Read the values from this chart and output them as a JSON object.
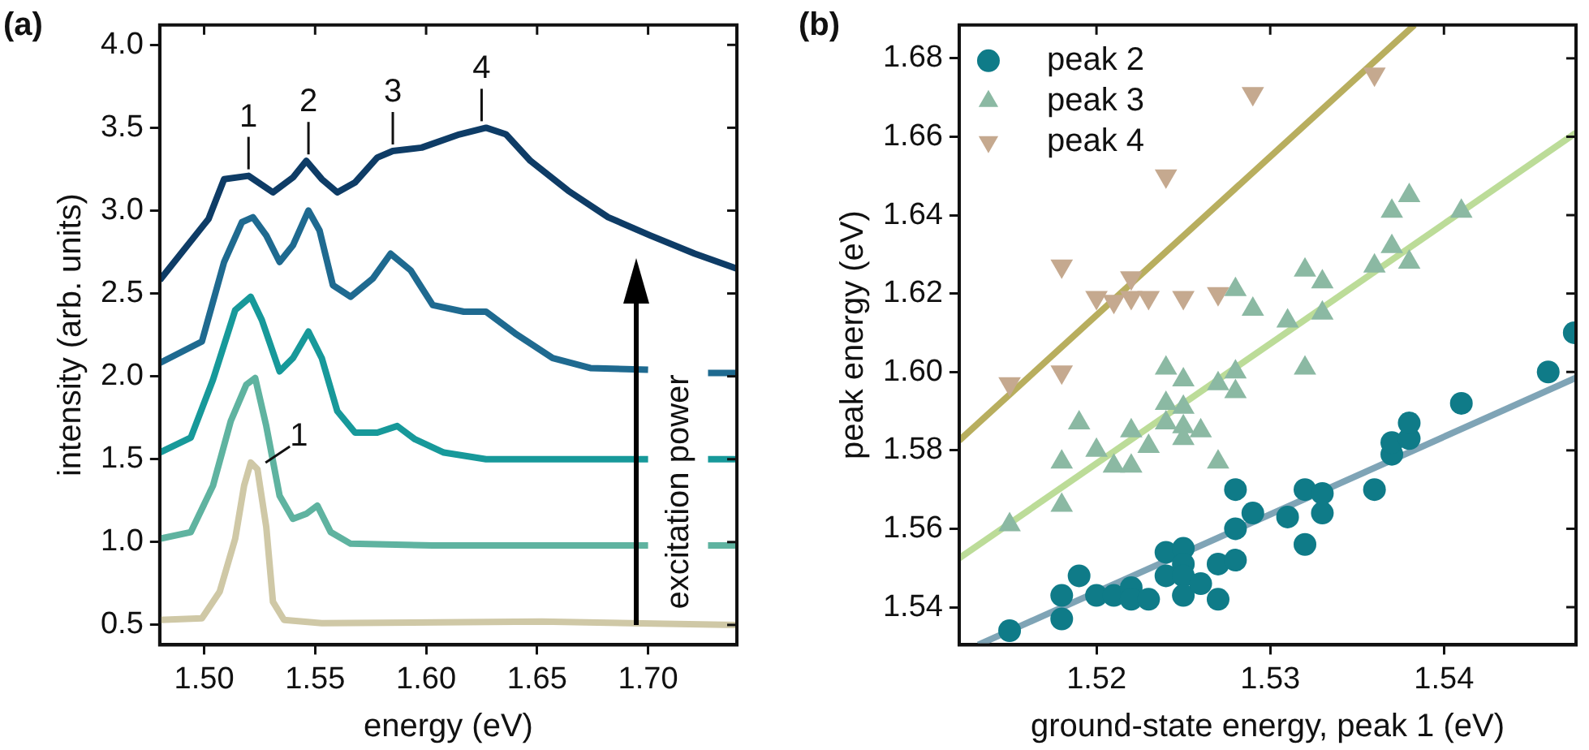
{
  "chart_data": [
    {
      "type": "line",
      "title": "(a)",
      "xlabel": "energy (eV)",
      "ylabel": "intensity (arb. units)",
      "xlim": [
        1.48,
        1.74
      ],
      "ylim": [
        0.38,
        4.12
      ],
      "xticks": [
        {
          "value": 1.5,
          "label": "1.50"
        },
        {
          "value": 1.55,
          "label": "1.55"
        },
        {
          "value": 1.6,
          "label": "1.60"
        },
        {
          "value": 1.65,
          "label": "1.65"
        },
        {
          "value": 1.7,
          "label": "1.70"
        }
      ],
      "yticks": [
        {
          "value": 0.5,
          "label": "0.5"
        },
        {
          "value": 1,
          "label": "1.0"
        },
        {
          "value": 1.5,
          "label": "1.5"
        },
        {
          "value": 2,
          "label": "2.0"
        },
        {
          "value": 2.5,
          "label": "2.5"
        },
        {
          "value": 3,
          "label": "3.0"
        },
        {
          "value": 3.5,
          "label": "3.5"
        },
        {
          "value": 4,
          "label": "4.0"
        }
      ],
      "legend": false,
      "marker": "none",
      "series": [
        {
          "color": "#cfc8a6",
          "x": [
            1.48,
            1.499,
            1.507,
            1.514,
            1.518,
            1.521,
            1.524,
            1.528,
            1.531,
            1.536,
            1.553,
            1.652,
            1.74
          ],
          "values": [
            0.53,
            0.54,
            0.7,
            1.02,
            1.34,
            1.48,
            1.44,
            1.09,
            0.64,
            0.53,
            0.51,
            0.52,
            0.5
          ]
        },
        {
          "color": "#5fb3a0",
          "x": [
            1.48,
            1.494,
            1.504,
            1.512,
            1.519,
            1.523,
            1.528,
            1.534,
            1.54,
            1.546,
            1.551,
            1.557,
            1.566,
            1.603,
            1.7,
            1.712,
            1.727,
            1.74
          ],
          "values": [
            1.02,
            1.06,
            1.34,
            1.73,
            1.95,
            1.99,
            1.7,
            1.28,
            1.14,
            1.17,
            1.22,
            1.06,
            0.99,
            0.98,
            0.98,
            null,
            0.98,
            0.98
          ]
        },
        {
          "color": "#17999a",
          "x": [
            1.48,
            1.494,
            1.504,
            1.514,
            1.521,
            1.526,
            1.534,
            1.54,
            1.547,
            1.553,
            1.56,
            1.568,
            1.578,
            1.587,
            1.595,
            1.608,
            1.627,
            1.652,
            1.7,
            1.712,
            1.727,
            1.74
          ],
          "values": [
            1.54,
            1.63,
            1.98,
            2.4,
            2.48,
            2.34,
            2.03,
            2.11,
            2.27,
            2.11,
            1.79,
            1.66,
            1.66,
            1.7,
            1.62,
            1.54,
            1.5,
            1.5,
            1.5,
            null,
            1.5,
            1.5
          ]
        },
        {
          "color": "#1f6a90",
          "x": [
            1.48,
            1.499,
            1.509,
            1.517,
            1.522,
            1.528,
            1.534,
            1.54,
            1.547,
            1.552,
            1.558,
            1.566,
            1.576,
            1.584,
            1.593,
            1.603,
            1.617,
            1.627,
            1.64,
            1.657,
            1.674,
            1.7,
            1.712,
            1.727,
            1.74
          ],
          "values": [
            2.08,
            2.21,
            2.69,
            2.93,
            2.96,
            2.85,
            2.69,
            2.79,
            3.0,
            2.88,
            2.55,
            2.48,
            2.59,
            2.74,
            2.64,
            2.43,
            2.39,
            2.39,
            2.26,
            2.11,
            2.05,
            2.04,
            null,
            2.02,
            2.02
          ]
        },
        {
          "color": "#0e3c66",
          "x": [
            1.48,
            1.502,
            1.509,
            1.52,
            1.531,
            1.54,
            1.546,
            1.553,
            1.56,
            1.568,
            1.578,
            1.585,
            1.598,
            1.615,
            1.627,
            1.636,
            1.647,
            1.664,
            1.682,
            1.701,
            1.721,
            1.74
          ],
          "values": [
            2.58,
            2.95,
            3.19,
            3.21,
            3.11,
            3.2,
            3.3,
            3.19,
            3.11,
            3.17,
            3.32,
            3.36,
            3.38,
            3.46,
            3.5,
            3.46,
            3.3,
            3.12,
            2.96,
            2.85,
            2.74,
            2.65
          ]
        }
      ],
      "annotations": [
        {
          "text": "1",
          "x": 1.52,
          "y": 3.21
        },
        {
          "text": "2",
          "x": 1.547,
          "y": 3.3
        },
        {
          "text": "3",
          "x": 1.585,
          "y": 3.36
        },
        {
          "text": "4",
          "x": 1.625,
          "y": 3.5
        },
        {
          "text": "1",
          "x": 1.524,
          "y": 1.44
        },
        "excitation power"
      ]
    },
    {
      "type": "scatter",
      "title": "(b)",
      "xlabel": "ground-state energy, peak 1 (eV)",
      "ylabel": "peak energy (eV)",
      "xlim": [
        1.5121,
        1.5476
      ],
      "ylim": [
        1.5304,
        1.6885
      ],
      "xticks": [
        1.52,
        1.53,
        1.54
      ],
      "yticks": [
        1.54,
        1.56,
        1.58,
        {
          "value": 1.6,
          "label": "1.60"
        },
        1.62,
        1.64,
        1.66,
        1.68
      ],
      "legend": "top left",
      "series": [
        {
          "name": "peak 2",
          "color": "#0f7b88",
          "marker": "circle",
          "x": [
            1.515,
            1.518,
            1.518,
            1.519,
            1.52,
            1.521,
            1.522,
            1.522,
            1.523,
            1.524,
            1.524,
            1.525,
            1.525,
            1.525,
            1.525,
            1.526,
            1.527,
            1.527,
            1.528,
            1.528,
            1.528,
            1.529,
            1.531,
            1.532,
            1.532,
            1.533,
            1.533,
            1.536,
            1.537,
            1.537,
            1.538,
            1.538,
            1.541,
            1.546,
            1.5475
          ],
          "values": [
            1.534,
            1.543,
            1.537,
            1.548,
            1.543,
            1.543,
            1.545,
            1.542,
            1.542,
            1.554,
            1.548,
            1.555,
            1.551,
            1.548,
            1.543,
            1.546,
            1.542,
            1.551,
            1.552,
            1.56,
            1.57,
            1.564,
            1.563,
            1.57,
            1.556,
            1.569,
            1.564,
            1.57,
            1.579,
            1.582,
            1.583,
            1.587,
            1.592,
            1.6,
            1.61
          ]
        },
        {
          "name": "peak 3",
          "color": "#8bb9a3",
          "marker": "triangle",
          "x": [
            1.515,
            1.518,
            1.518,
            1.519,
            1.52,
            1.521,
            1.522,
            1.522,
            1.523,
            1.524,
            1.524,
            1.524,
            1.525,
            1.525,
            1.525,
            1.525,
            1.526,
            1.527,
            1.527,
            1.528,
            1.528,
            1.528,
            1.529,
            1.531,
            1.532,
            1.532,
            1.533,
            1.533,
            1.536,
            1.537,
            1.537,
            1.538,
            1.538,
            1.541
          ],
          "values": [
            1.561,
            1.566,
            1.577,
            1.587,
            1.58,
            1.576,
            1.585,
            1.576,
            1.581,
            1.601,
            1.592,
            1.587,
            1.598,
            1.591,
            1.586,
            1.583,
            1.585,
            1.577,
            1.597,
            1.621,
            1.6,
            1.595,
            1.616,
            1.613,
            1.601,
            1.626,
            1.623,
            1.615,
            1.627,
            1.632,
            1.641,
            1.628,
            1.645,
            1.641
          ]
        },
        {
          "name": "peak 4",
          "color": "#c5a98f",
          "marker": "triangle-down",
          "x": [
            1.515,
            1.518,
            1.518,
            1.52,
            1.521,
            1.522,
            1.522,
            1.523,
            1.524,
            1.525,
            1.527,
            1.529,
            1.536
          ],
          "values": [
            1.597,
            1.6,
            1.627,
            1.619,
            1.618,
            1.624,
            1.619,
            1.619,
            1.65,
            1.619,
            1.62,
            1.671,
            1.676
          ]
        },
        {
          "type": "line",
          "color": "#7fa4b6",
          "x": [
            1.5132,
            1.5476
          ],
          "values": [
            1.5304,
            1.5985
          ]
        },
        {
          "type": "line",
          "color": "#bcdc98",
          "x": [
            1.5121,
            1.5476
          ],
          "values": [
            1.5525,
            1.661
          ]
        },
        {
          "type": "line",
          "color": "#b8ae5e",
          "x": [
            1.5121,
            1.5383
          ],
          "values": [
            1.5825,
            1.6885
          ]
        }
      ]
    }
  ]
}
